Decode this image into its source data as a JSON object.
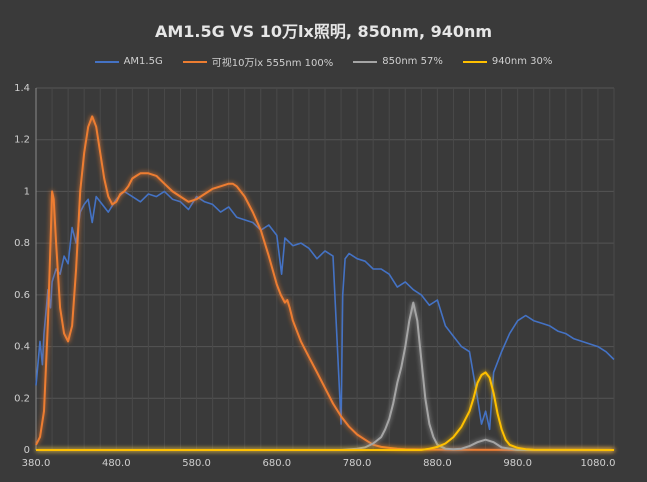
{
  "chart_data": {
    "type": "line",
    "title": "AM1.5G VS 10万lx照明, 850nm, 940nm",
    "xlabel": "",
    "ylabel": "",
    "xlim": [
      380,
      1100
    ],
    "ylim": [
      0,
      1.4
    ],
    "x_ticks": [
      "380.0",
      "480.0",
      "580.0",
      "680.0",
      "780.0",
      "880.0",
      "980.0",
      "1080.0"
    ],
    "x_tick_values": [
      380,
      480,
      580,
      680,
      780,
      880,
      980,
      1080
    ],
    "y_ticks": [
      "0",
      "0.2",
      "0.4",
      "0.6",
      "0.8",
      "1",
      "1.2",
      "1.4"
    ],
    "y_tick_values": [
      0,
      0.2,
      0.4,
      0.6,
      0.8,
      1.0,
      1.2,
      1.4
    ],
    "grid": true,
    "legend_position": "top",
    "series": [
      {
        "name": "AM1.5G",
        "color": "#4472c4",
        "x": [
          380,
          385,
          388,
          390,
          395,
          398,
          400,
          405,
          410,
          415,
          420,
          425,
          430,
          435,
          440,
          445,
          450,
          455,
          460,
          465,
          470,
          480,
          490,
          500,
          510,
          520,
          530,
          540,
          550,
          560,
          570,
          580,
          590,
          600,
          610,
          620,
          630,
          640,
          650,
          660,
          670,
          680,
          686,
          690,
          700,
          710,
          720,
          730,
          740,
          750,
          760,
          762,
          765,
          770,
          780,
          790,
          800,
          810,
          820,
          830,
          840,
          850,
          860,
          870,
          880,
          890,
          900,
          910,
          920,
          930,
          935,
          940,
          945,
          950,
          960,
          970,
          980,
          990,
          1000,
          1010,
          1020,
          1030,
          1040,
          1050,
          1060,
          1070,
          1080,
          1090,
          1100
        ],
        "y": [
          0.25,
          0.42,
          0.33,
          0.45,
          0.62,
          0.55,
          0.65,
          0.7,
          0.68,
          0.75,
          0.72,
          0.86,
          0.8,
          0.92,
          0.95,
          0.97,
          0.88,
          0.98,
          0.96,
          0.94,
          0.92,
          0.97,
          1.0,
          0.98,
          0.96,
          0.99,
          0.98,
          1.0,
          0.97,
          0.96,
          0.93,
          0.98,
          0.96,
          0.95,
          0.92,
          0.94,
          0.9,
          0.89,
          0.88,
          0.85,
          0.87,
          0.83,
          0.68,
          0.82,
          0.79,
          0.8,
          0.78,
          0.74,
          0.77,
          0.75,
          0.1,
          0.6,
          0.74,
          0.76,
          0.74,
          0.73,
          0.7,
          0.7,
          0.68,
          0.63,
          0.65,
          0.62,
          0.6,
          0.56,
          0.58,
          0.48,
          0.44,
          0.4,
          0.38,
          0.2,
          0.1,
          0.15,
          0.08,
          0.3,
          0.38,
          0.45,
          0.5,
          0.52,
          0.5,
          0.49,
          0.48,
          0.46,
          0.45,
          0.43,
          0.42,
          0.41,
          0.4,
          0.38,
          0.35
        ]
      },
      {
        "name": "可视10万lx 555nm 100%",
        "color": "#ed7d31",
        "x": [
          380,
          385,
          390,
          395,
          398,
          400,
          402,
          405,
          410,
          415,
          420,
          425,
          430,
          435,
          440,
          445,
          450,
          455,
          460,
          465,
          470,
          475,
          480,
          485,
          490,
          495,
          500,
          505,
          510,
          520,
          530,
          540,
          550,
          560,
          570,
          580,
          590,
          600,
          610,
          620,
          625,
          630,
          640,
          650,
          660,
          670,
          680,
          685,
          690,
          693,
          696,
          700,
          710,
          720,
          730,
          740,
          750,
          760,
          770,
          780,
          790,
          800,
          810,
          820,
          830,
          840,
          860,
          900,
          1000,
          1100
        ],
        "y": [
          0.02,
          0.05,
          0.15,
          0.5,
          0.8,
          1.0,
          0.97,
          0.8,
          0.55,
          0.45,
          0.42,
          0.48,
          0.7,
          1.0,
          1.15,
          1.25,
          1.29,
          1.25,
          1.15,
          1.05,
          0.98,
          0.95,
          0.96,
          0.99,
          1.0,
          1.02,
          1.05,
          1.06,
          1.07,
          1.07,
          1.06,
          1.03,
          1.0,
          0.98,
          0.96,
          0.97,
          0.99,
          1.01,
          1.02,
          1.03,
          1.03,
          1.02,
          0.98,
          0.92,
          0.85,
          0.75,
          0.64,
          0.6,
          0.57,
          0.58,
          0.55,
          0.5,
          0.42,
          0.36,
          0.3,
          0.24,
          0.18,
          0.13,
          0.09,
          0.06,
          0.04,
          0.02,
          0.012,
          0.008,
          0.005,
          0.003,
          0.002,
          0.001,
          0.0,
          0.0
        ],
        "glow": true
      },
      {
        "name": "850nm 57%",
        "color": "#a5a5a5",
        "x": [
          380,
          760,
          780,
          790,
          800,
          810,
          815,
          820,
          825,
          830,
          835,
          840,
          845,
          850,
          855,
          860,
          865,
          870,
          875,
          880,
          890,
          900,
          910,
          920,
          930,
          940,
          950,
          960,
          980,
          1100
        ],
        "y": [
          0.0,
          0.0,
          0.005,
          0.01,
          0.025,
          0.05,
          0.08,
          0.12,
          0.18,
          0.26,
          0.32,
          0.4,
          0.5,
          0.57,
          0.5,
          0.35,
          0.2,
          0.1,
          0.05,
          0.02,
          0.005,
          0.003,
          0.005,
          0.015,
          0.03,
          0.04,
          0.03,
          0.01,
          0.0,
          0.0
        ],
        "glow": true
      },
      {
        "name": "940nm 30%",
        "color": "#ffc000",
        "x": [
          380,
          860,
          870,
          880,
          890,
          900,
          910,
          920,
          925,
          930,
          935,
          940,
          945,
          950,
          955,
          960,
          965,
          970,
          980,
          990,
          1000,
          1100
        ],
        "y": [
          0.0,
          0.0,
          0.005,
          0.012,
          0.025,
          0.05,
          0.09,
          0.15,
          0.2,
          0.26,
          0.29,
          0.3,
          0.28,
          0.22,
          0.14,
          0.08,
          0.04,
          0.02,
          0.008,
          0.003,
          0.001,
          0.0
        ],
        "glow": true
      }
    ]
  }
}
